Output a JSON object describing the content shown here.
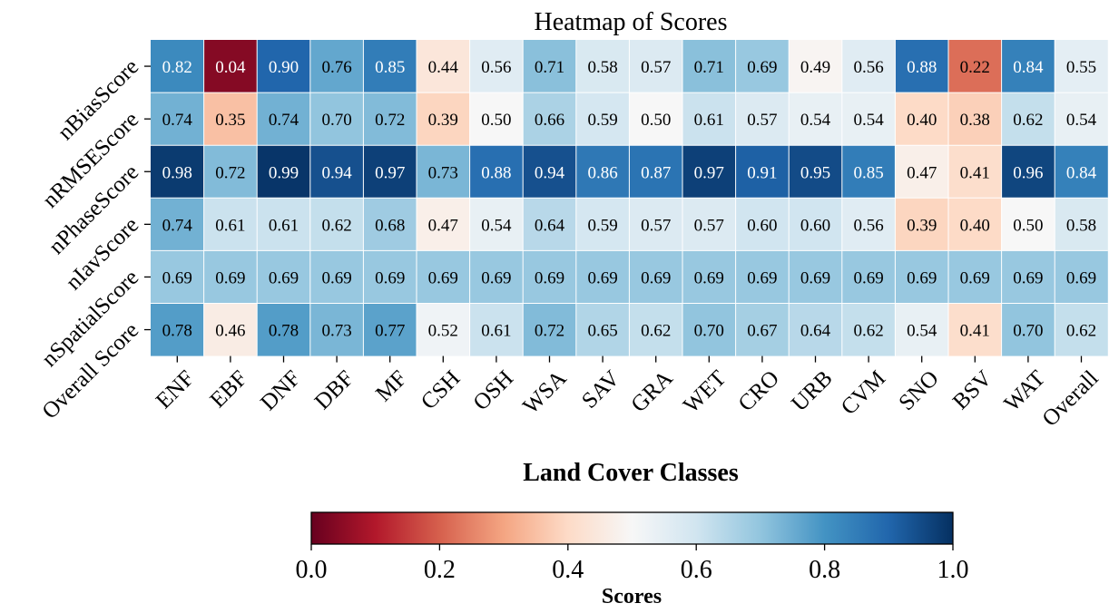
{
  "chart_data": {
    "type": "heatmap",
    "title": "Heatmap of Scores",
    "xlabel": "Land Cover Classes",
    "ylabel": "",
    "x_categories": [
      "ENF",
      "EBF",
      "DNF",
      "DBF",
      "MF",
      "CSH",
      "OSH",
      "WSA",
      "SAV",
      "GRA",
      "WET",
      "CRO",
      "URB",
      "CVM",
      "SNO",
      "BSV",
      "WAT",
      "Overall"
    ],
    "y_categories": [
      "nBiasScore",
      "nRMSEScore",
      "nPhaseScore",
      "nIavScore",
      "nSpatialScore",
      "Overall Score"
    ],
    "values": [
      [
        0.82,
        0.04,
        0.9,
        0.76,
        0.85,
        0.44,
        0.56,
        0.71,
        0.58,
        0.57,
        0.71,
        0.69,
        0.49,
        0.56,
        0.88,
        0.22,
        0.84,
        0.55
      ],
      [
        0.74,
        0.35,
        0.74,
        0.7,
        0.72,
        0.39,
        0.5,
        0.66,
        0.59,
        0.5,
        0.61,
        0.57,
        0.54,
        0.54,
        0.4,
        0.38,
        0.62,
        0.54
      ],
      [
        0.98,
        0.72,
        0.99,
        0.94,
        0.97,
        0.73,
        0.88,
        0.94,
        0.86,
        0.87,
        0.97,
        0.91,
        0.95,
        0.85,
        0.47,
        0.41,
        0.96,
        0.84
      ],
      [
        0.74,
        0.61,
        0.61,
        0.62,
        0.68,
        0.47,
        0.54,
        0.64,
        0.59,
        0.57,
        0.57,
        0.6,
        0.6,
        0.56,
        0.39,
        0.4,
        0.5,
        0.58
      ],
      [
        0.69,
        0.69,
        0.69,
        0.69,
        0.69,
        0.69,
        0.69,
        0.69,
        0.69,
        0.69,
        0.69,
        0.69,
        0.69,
        0.69,
        0.69,
        0.69,
        0.69,
        0.69
      ],
      [
        0.78,
        0.46,
        0.78,
        0.73,
        0.77,
        0.52,
        0.61,
        0.72,
        0.65,
        0.62,
        0.7,
        0.67,
        0.64,
        0.62,
        0.54,
        0.41,
        0.7,
        0.62
      ]
    ],
    "colormap": "RdBu",
    "vmin": 0.0,
    "vmax": 1.0,
    "colorbar": {
      "label": "Scores",
      "orientation": "horizontal",
      "ticks": [
        0.0,
        0.2,
        0.4,
        0.6,
        0.8,
        1.0
      ],
      "tick_labels": [
        "0.0",
        "0.2",
        "0.4",
        "0.6",
        "0.8",
        "1.0"
      ]
    },
    "grid": true
  }
}
